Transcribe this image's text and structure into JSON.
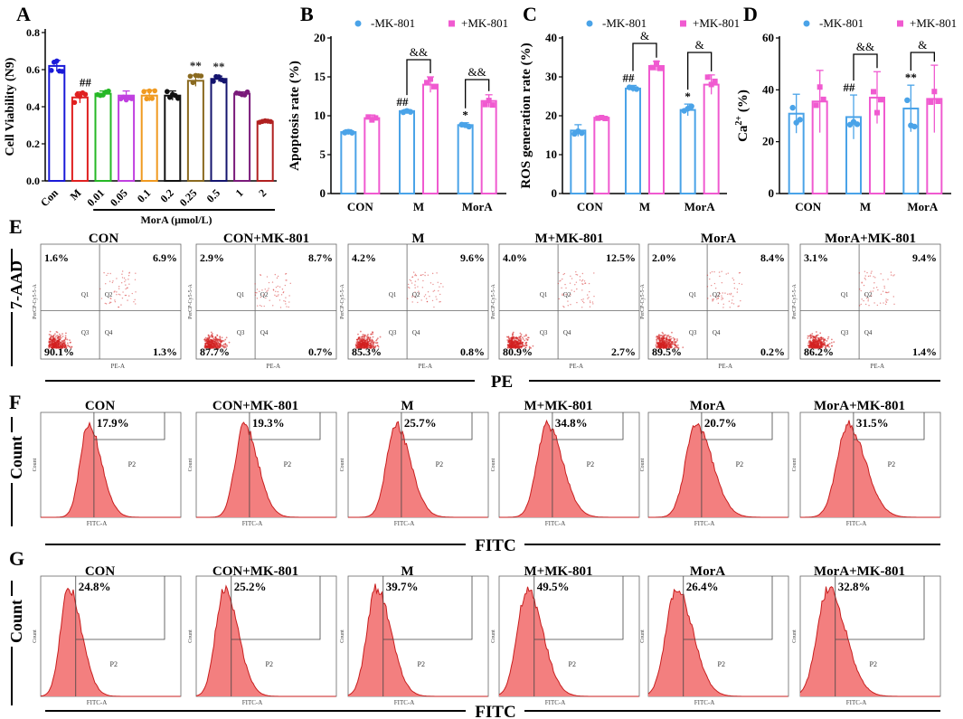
{
  "figure": {
    "panel_letters": [
      "A",
      "B",
      "C",
      "D",
      "E",
      "F",
      "G"
    ]
  },
  "colors": {
    "minus": "#4aa3e8",
    "plus": "#f05ad0",
    "flow_fill": "#f37f7f",
    "flow_line": "#c81e1e",
    "dot": "#d42020"
  },
  "chart_data": [
    {
      "type": "bar",
      "panel": "A",
      "title": "",
      "ylabel": "Cell Viability (N9)",
      "xlabel": "MorA (μmol/L)",
      "ylim": [
        0,
        0.8
      ],
      "yticks": [
        "0.0",
        "0.2",
        "0.4",
        "0.6",
        "0.8"
      ],
      "categories": [
        "Con",
        "M",
        "0.01",
        "0.05",
        "0.1",
        "0.2",
        "0.25",
        "0.5",
        "1",
        "2"
      ],
      "values": [
        0.62,
        0.45,
        0.47,
        0.46,
        0.46,
        0.46,
        0.54,
        0.55,
        0.47,
        0.32
      ],
      "errors": [
        0.03,
        0.03,
        0.015,
        0.025,
        0.03,
        0.025,
        0.03,
        0.015,
        0.01,
        0.01
      ],
      "colors": [
        "#1a1ad8",
        "#e02020",
        "#26b826",
        "#c040e0",
        "#f09a20",
        "#111111",
        "#8a6a20",
        "#14146e",
        "#7a1a7a",
        "#b02020"
      ],
      "annotations": [
        "",
        "##",
        "",
        "",
        "",
        "",
        "**",
        "**",
        "",
        ""
      ]
    },
    {
      "type": "bar",
      "panel": "B",
      "ylabel": "Apoptosis rate (%)",
      "ylim": [
        0,
        20
      ],
      "yticks": [
        "0",
        "5",
        "10",
        "15",
        "20"
      ],
      "categories": [
        "CON",
        "M",
        "MorA"
      ],
      "legend": [
        "-MK-801",
        "+MK-801"
      ],
      "series": [
        {
          "name": "-MK-801",
          "values": [
            7.9,
            10.6,
            8.8
          ],
          "errors": [
            0.3,
            0.2,
            0.3
          ],
          "marks": [
            "",
            "##",
            "*"
          ]
        },
        {
          "name": "+MK-801",
          "values": [
            9.7,
            14.0,
            11.9
          ],
          "errors": [
            0.4,
            1.0,
            0.8
          ],
          "marks": [
            "",
            "",
            ""
          ]
        }
      ],
      "brackets": [
        "",
        "&&",
        "&&"
      ]
    },
    {
      "type": "bar",
      "panel": "C",
      "ylabel": "ROS generation rate (%)",
      "ylim": [
        0,
        40
      ],
      "yticks": [
        "0",
        "10",
        "20",
        "30",
        "40"
      ],
      "categories": [
        "CON",
        "M",
        "MorA"
      ],
      "legend": [
        "-MK-801",
        "+MK-801"
      ],
      "series": [
        {
          "name": "-MK-801",
          "values": [
            16.2,
            27.0,
            21.5
          ],
          "errors": [
            1.5,
            0.8,
            1.5
          ],
          "marks": [
            "",
            "##",
            "*"
          ]
        },
        {
          "name": "+MK-801",
          "values": [
            19.5,
            32.8,
            28.0
          ],
          "errors": [
            0.3,
            1.2,
            2.5
          ],
          "marks": [
            "",
            "",
            ""
          ]
        }
      ],
      "brackets": [
        "",
        "&",
        "&"
      ]
    },
    {
      "type": "bar",
      "panel": "D",
      "ylabel": "Ca²⁺ (%)",
      "ylim": [
        0,
        60
      ],
      "yticks": [
        "0",
        "20",
        "40",
        "60"
      ],
      "categories": [
        "CON",
        "M",
        "MorA"
      ],
      "legend": [
        "-MK-801",
        "+MK-801"
      ],
      "series": [
        {
          "name": "-MK-801",
          "values": [
            30.8,
            29.5,
            32.8
          ],
          "errors": [
            7.5,
            8.5,
            9.0
          ],
          "marks": [
            "",
            "##",
            "**"
          ]
        },
        {
          "name": "+MK-801",
          "values": [
            35.5,
            37.0,
            36.5
          ],
          "errors": [
            12.0,
            10.0,
            13.0
          ],
          "marks": [
            "",
            "",
            ""
          ]
        }
      ],
      "brackets": [
        "",
        "&&",
        "&"
      ]
    }
  ],
  "flow": {
    "E": {
      "ylabel": "7-AAD",
      "xlabel": "PE",
      "axis_y": "PerCP-Cy5-5-A",
      "axis_x": "PE-A",
      "quadrants": [
        "Q1",
        "Q2",
        "Q3",
        "Q4"
      ],
      "plots": [
        {
          "title": "CON",
          "q1": "1.6%",
          "q2": "6.9%",
          "q3": "90.1%",
          "q4": "1.3%"
        },
        {
          "title": "CON+MK-801",
          "q1": "2.9%",
          "q2": "8.7%",
          "q3": "87.7%",
          "q4": "0.7%"
        },
        {
          "title": "M",
          "q1": "4.2%",
          "q2": "9.6%",
          "q3": "85.3%",
          "q4": "0.8%"
        },
        {
          "title": "M+MK-801",
          "q1": "4.0%",
          "q2": "12.5%",
          "q3": "80.9%",
          "q4": "2.7%"
        },
        {
          "title": "MorA",
          "q1": "2.0%",
          "q2": "8.4%",
          "q3": "89.5%",
          "q4": "0.2%"
        },
        {
          "title": "MorA+MK-801",
          "q1": "3.1%",
          "q2": "9.4%",
          "q3": "86.2%",
          "q4": "1.4%"
        }
      ]
    },
    "F": {
      "ylabel": "Count",
      "xlabel": "FITC",
      "axis_y": "Count",
      "axis_x": "FITC-A",
      "gate": "P2",
      "plots": [
        {
          "title": "CON",
          "pct": "17.9%"
        },
        {
          "title": "CON+MK-801",
          "pct": "19.3%"
        },
        {
          "title": "M",
          "pct": "25.7%"
        },
        {
          "title": "M+MK-801",
          "pct": "34.8%"
        },
        {
          "title": "MorA",
          "pct": "20.7%"
        },
        {
          "title": "MorA+MK-801",
          "pct": "31.5%"
        }
      ]
    },
    "G": {
      "ylabel": "Count",
      "xlabel": "FITC",
      "axis_y": "Count",
      "axis_x": "FITC-A",
      "gate": "P2",
      "plots": [
        {
          "title": "CON",
          "pct": "24.8%"
        },
        {
          "title": "CON+MK-801",
          "pct": "25.2%"
        },
        {
          "title": "M",
          "pct": "39.7%"
        },
        {
          "title": "M+MK-801",
          "pct": "49.5%"
        },
        {
          "title": "MorA",
          "pct": "26.4%"
        },
        {
          "title": "MorA+MK-801",
          "pct": "32.8%"
        }
      ]
    }
  }
}
